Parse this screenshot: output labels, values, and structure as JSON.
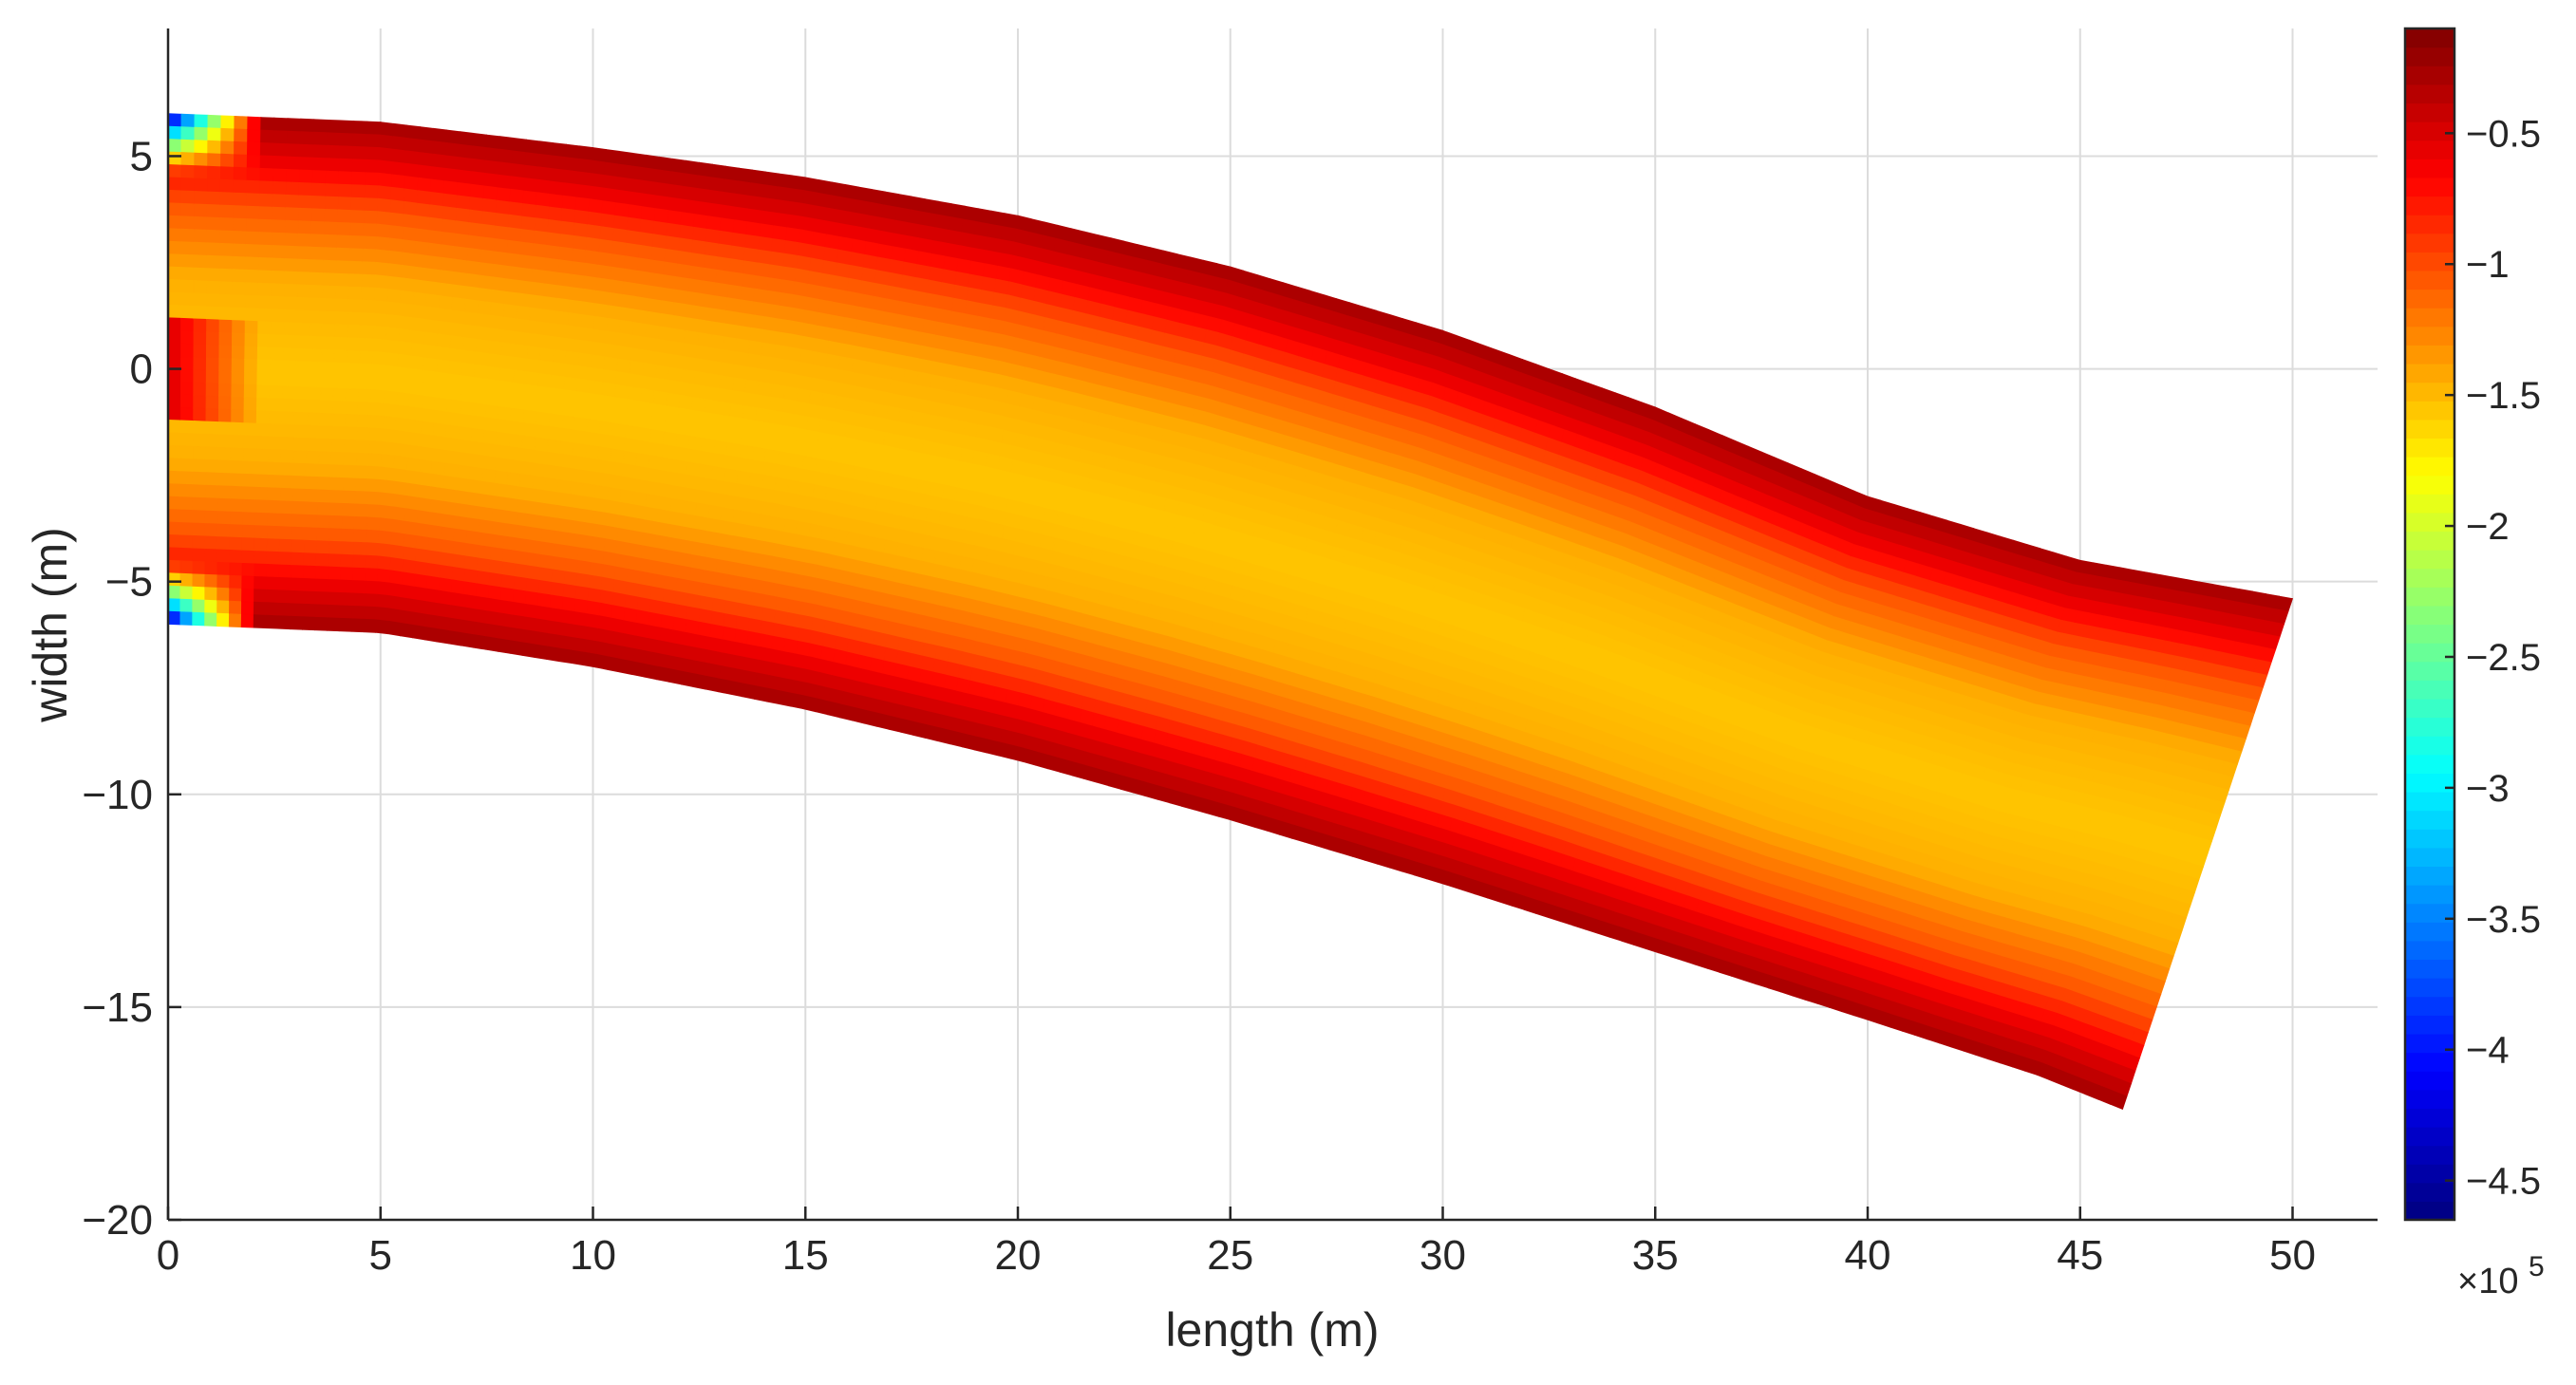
{
  "chart_data": {
    "type": "heatmap",
    "title": "",
    "xlabel": "length (m)",
    "ylabel": "width (m)",
    "xlim": [
      0,
      52
    ],
    "ylim": [
      -20,
      8
    ],
    "xticks": [
      0,
      5,
      10,
      15,
      20,
      25,
      30,
      35,
      40,
      45,
      50
    ],
    "yticks": [
      -20,
      -15,
      -10,
      -5,
      0,
      5
    ],
    "xtick_labels": [
      "0",
      "5",
      "10",
      "15",
      "20",
      "25",
      "30",
      "35",
      "40",
      "45",
      "50"
    ],
    "ytick_labels": [
      "−20",
      "−15",
      "−10",
      "−5",
      "0",
      "5"
    ],
    "grid": true,
    "colormap": "jet",
    "colorbar": {
      "position": "right",
      "limits": [
        -4.65,
        -0.1
      ],
      "ticks": [
        -4.5,
        -4,
        -3.5,
        -3,
        -2.5,
        -2,
        -1.5,
        -1,
        -0.5
      ],
      "tick_labels": [
        "−4.5",
        "−4",
        "−3.5",
        "−3",
        "−2.5",
        "−2",
        "−1.5",
        "−1",
        "−0.5"
      ],
      "exponent_label": "×10",
      "exponent_power": "5"
    },
    "domain": {
      "description_free": true,
      "upper_edge": [
        [
          0,
          6
        ],
        [
          5,
          5.8
        ],
        [
          10,
          5.2
        ],
        [
          15,
          4.5
        ],
        [
          20,
          3.6
        ],
        [
          25,
          2.4
        ],
        [
          30,
          0.9
        ],
        [
          35,
          -0.9
        ],
        [
          40,
          -3.0
        ],
        [
          45,
          -4.5
        ],
        [
          50,
          -5.4
        ]
      ],
      "lower_edge": [
        [
          0,
          -6
        ],
        [
          5,
          -6.2
        ],
        [
          10,
          -7.0
        ],
        [
          15,
          -8.0
        ],
        [
          20,
          -9.2
        ],
        [
          25,
          -10.6
        ],
        [
          30,
          -12.1
        ],
        [
          35,
          -13.7
        ],
        [
          40,
          -15.3
        ],
        [
          44,
          -16.6
        ],
        [
          46,
          -17.4
        ]
      ],
      "end_edge": [
        [
          50,
          -5.4
        ],
        [
          46,
          -17.4
        ]
      ]
    },
    "field_profile_across_width": {
      "fraction_from_edge": [
        0,
        0.08,
        0.18,
        0.32,
        0.5
      ],
      "value": [
        -0.25,
        -0.55,
        -1.05,
        -1.45,
        -1.55
      ]
    },
    "inlet_minimum": -4.6
  }
}
